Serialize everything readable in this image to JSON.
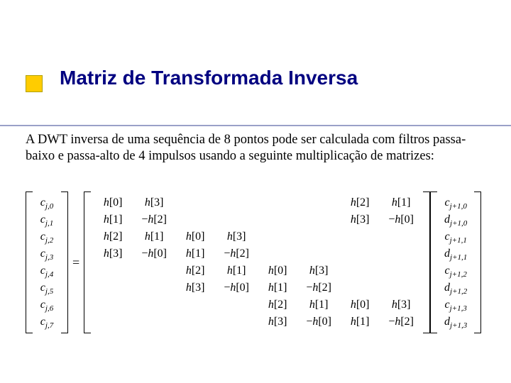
{
  "title": "Matriz de Transformada Inversa",
  "paragraph": "A DWT inversa de uma sequência de 8 pontos  pode ser calculada com filtros passa-baixo e passa-alto de 4 impulsos usando a seguinte multiplicação de matrizes:",
  "colors": {
    "title_color": "#000080",
    "bullet_fill": "#ffcc00",
    "rule_color": "#9aa0c8",
    "text_color": "#000000",
    "background": "#ffffff"
  },
  "typography": {
    "title_family": "Verdana",
    "title_size_pt": 21,
    "title_weight": 700,
    "body_family": "Times New Roman",
    "body_size_pt": 14,
    "matrix_size_pt": 12
  },
  "equation": {
    "left_vector": [
      "c_{j,0}",
      "c_{j,1}",
      "c_{j,2}",
      "c_{j,3}",
      "c_{j,4}",
      "c_{j,5}",
      "c_{j,6}",
      "c_{j,7}"
    ],
    "equals": "=",
    "matrix_rows": [
      [
        "h[0]",
        "h[3]",
        "",
        "",
        "",
        "",
        "h[2]",
        "h[1]"
      ],
      [
        "h[1]",
        "-h[2]",
        "",
        "",
        "",
        "",
        "h[3]",
        "-h[0]"
      ],
      [
        "h[2]",
        "h[1]",
        "h[0]",
        "h[3]",
        "",
        "",
        "",
        ""
      ],
      [
        "h[3]",
        "-h[0]",
        "h[1]",
        "-h[2]",
        "",
        "",
        "",
        ""
      ],
      [
        "",
        "",
        "h[2]",
        "h[1]",
        "h[0]",
        "h[3]",
        "",
        ""
      ],
      [
        "",
        "",
        "h[3]",
        "-h[0]",
        "h[1]",
        "-h[2]",
        "",
        ""
      ],
      [
        "",
        "",
        "",
        "",
        "h[2]",
        "h[1]",
        "h[0]",
        "h[3]"
      ],
      [
        "",
        "",
        "",
        "",
        "h[3]",
        "-h[0]",
        "h[1]",
        "-h[2]"
      ]
    ],
    "right_vector": [
      "c_{j+1,0}",
      "d_{j+1,0}",
      "c_{j+1,1}",
      "d_{j+1,1}",
      "c_{j+1,2}",
      "d_{j+1,2}",
      "c_{j+1,3}",
      "d_{j+1,3}"
    ]
  }
}
